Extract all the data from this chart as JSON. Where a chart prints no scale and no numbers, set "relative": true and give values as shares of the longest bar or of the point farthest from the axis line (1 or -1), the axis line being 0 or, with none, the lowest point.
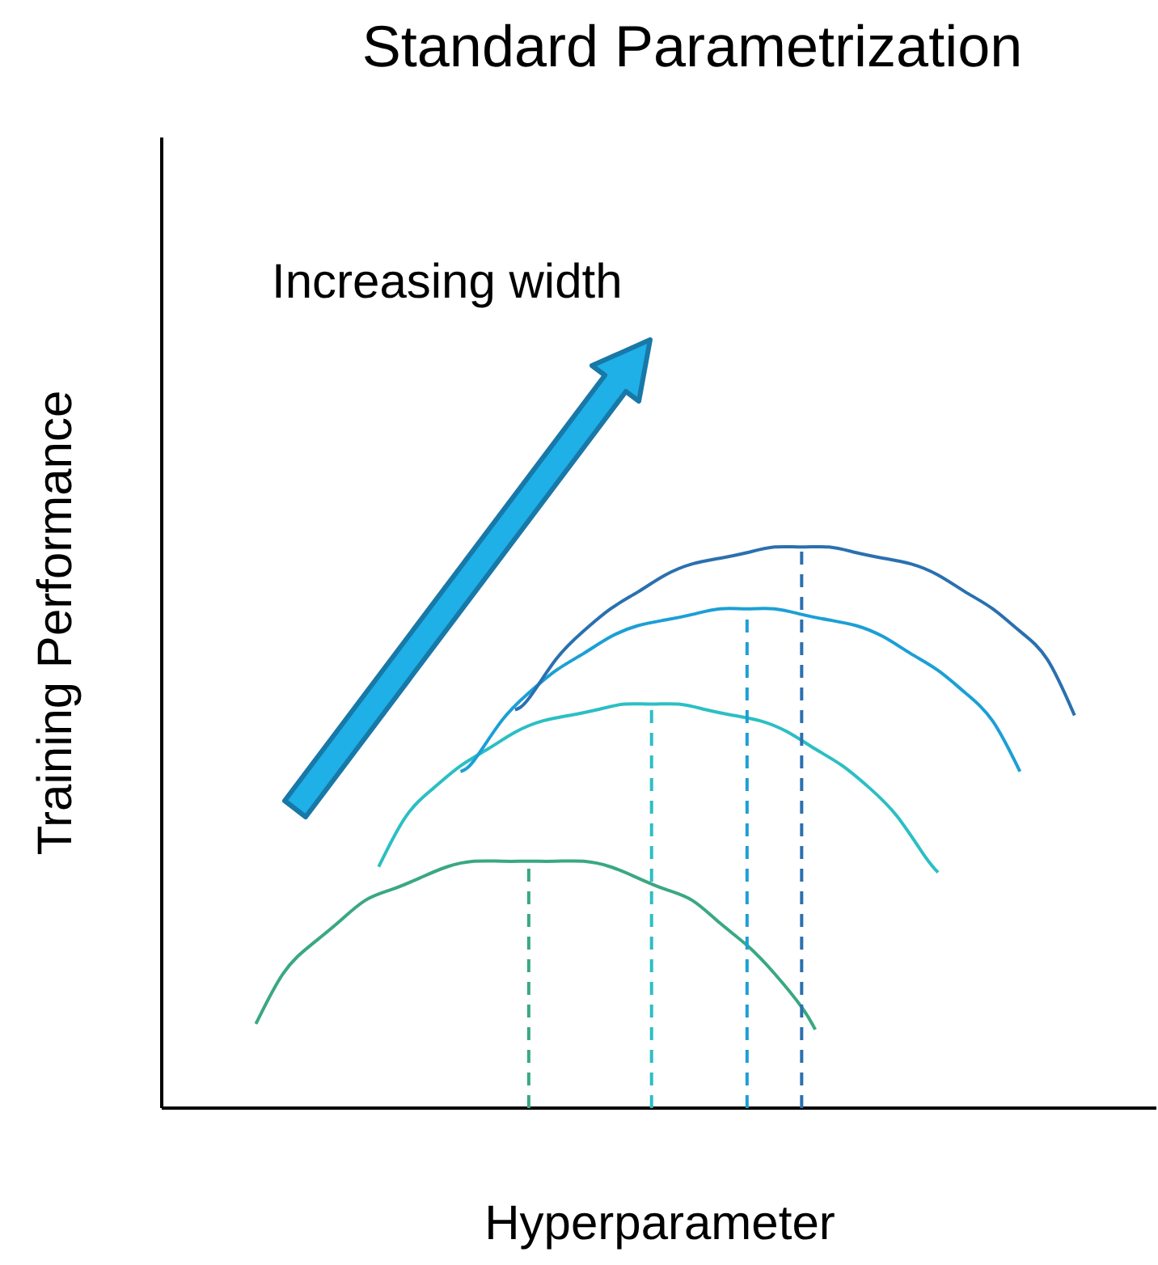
{
  "chart_data": {
    "type": "line",
    "title": "Standard Parametrization",
    "xlabel": "Hyperparameter",
    "ylabel": "Training Performance",
    "relative": true,
    "marker": "none",
    "line_style": "solid",
    "annotations": [
      "Increasing width"
    ],
    "categories": [
      null,
      null,
      null,
      null,
      null,
      null,
      null,
      null,
      null,
      null,
      null,
      null,
      null,
      null,
      null,
      null,
      null,
      null,
      null,
      null,
      null,
      null,
      null,
      null,
      null,
      null,
      null,
      null,
      null,
      null,
      null,
      null,
      null,
      null,
      null,
      null,
      null,
      null,
      null,
      null,
      null,
      null,
      null,
      null,
      null,
      null,
      null,
      null,
      null,
      null,
      null,
      null,
      null,
      null,
      null,
      null,
      null,
      null,
      null,
      null,
      null
    ],
    "series": [
      {
        "color": "#3aa880",
        "values": [
          0.15,
          null,
          0.24,
          null,
          0.29,
          null,
          0.33,
          null,
          0.37,
          null,
          0.39,
          null,
          0.41,
          null,
          0.43,
          null,
          0.44,
          null,
          0.44,
          null,
          0.44,
          null,
          0.44,
          null,
          0.44,
          null,
          0.43,
          null,
          0.41,
          null,
          0.39,
          null,
          0.37,
          null,
          0.33,
          null,
          0.29,
          null,
          0.24,
          null,
          0.18,
          0.14,
          null,
          null,
          null,
          null,
          null,
          null,
          null,
          null,
          null,
          null,
          null,
          null,
          null,
          null,
          null,
          null,
          null,
          null,
          null
        ]
      },
      {
        "color": "#2bbfc4",
        "values": [
          null,
          null,
          null,
          null,
          null,
          null,
          null,
          null,
          null,
          0.43,
          null,
          0.52,
          null,
          0.57,
          null,
          0.61,
          null,
          0.64,
          null,
          0.67,
          null,
          0.69,
          null,
          0.7,
          null,
          0.71,
          null,
          0.72,
          null,
          0.72,
          null,
          0.72,
          null,
          0.71,
          null,
          0.7,
          null,
          0.69,
          null,
          0.67,
          null,
          0.64,
          null,
          0.61,
          null,
          0.57,
          null,
          0.52,
          null,
          0.45,
          0.42,
          null,
          null,
          null,
          null,
          null,
          null,
          null,
          null,
          null,
          null
        ]
      },
      {
        "color": "#1c9fd6",
        "values": [
          null,
          null,
          null,
          null,
          null,
          null,
          null,
          null,
          null,
          null,
          null,
          null,
          null,
          null,
          null,
          0.6,
          0.62,
          null,
          0.69,
          null,
          0.74,
          null,
          0.78,
          null,
          0.81,
          null,
          0.84,
          null,
          0.86,
          null,
          0.87,
          null,
          0.88,
          null,
          0.89,
          null,
          0.89,
          null,
          0.89,
          null,
          0.88,
          null,
          0.87,
          null,
          0.86,
          null,
          0.84,
          null,
          0.81,
          null,
          0.78,
          null,
          0.74,
          null,
          0.69,
          null,
          0.6,
          null,
          null,
          null,
          null
        ]
      },
      {
        "color": "#2a70b0",
        "values": [
          null,
          null,
          null,
          null,
          null,
          null,
          null,
          null,
          null,
          null,
          null,
          null,
          null,
          null,
          null,
          null,
          null,
          null,
          null,
          0.71,
          0.73,
          null,
          0.8,
          null,
          0.85,
          null,
          0.89,
          null,
          0.92,
          null,
          0.95,
          null,
          0.97,
          null,
          0.98,
          null,
          0.99,
          null,
          1,
          null,
          1,
          null,
          1,
          null,
          0.99,
          null,
          0.98,
          null,
          0.97,
          null,
          0.95,
          null,
          0.92,
          null,
          0.89,
          null,
          0.85,
          null,
          0.8,
          null,
          0.7
        ]
      }
    ]
  }
}
